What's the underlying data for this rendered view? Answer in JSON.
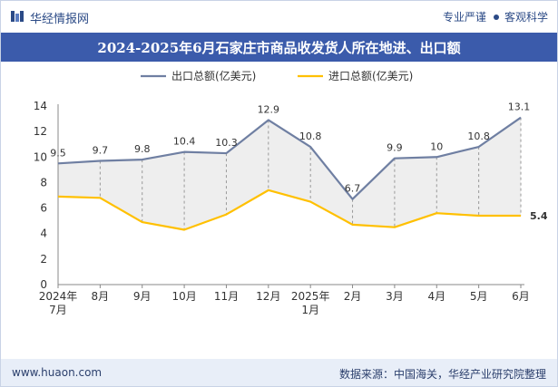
{
  "header": {
    "site_name": "华经情报网",
    "tagline_left": "专业严谨",
    "tagline_right": "客观科学"
  },
  "footer": {
    "website": "www.huaon.com",
    "source": "数据来源：中国海关，华经产业研究院整理"
  },
  "colors": {
    "title_bar": "#3b5bab",
    "export_line": "#6f7fa2",
    "import_line": "#ffc000"
  },
  "chart_data": {
    "type": "line",
    "title": "2024-2025年6月石家庄市商品收发货人所在地进、出口额",
    "categories": [
      [
        "2024年",
        "7月"
      ],
      [
        "8月"
      ],
      [
        "9月"
      ],
      [
        "10月"
      ],
      [
        "11月"
      ],
      [
        "12月"
      ],
      [
        "2025年",
        "1月"
      ],
      [
        "2月"
      ],
      [
        "3月"
      ],
      [
        "4月"
      ],
      [
        "5月"
      ],
      [
        "6月"
      ]
    ],
    "ylim": [
      0,
      14
    ],
    "yticks": [
      0,
      2,
      4,
      6,
      8,
      10,
      12,
      14
    ],
    "series": [
      {
        "name": "出口总额(亿美元)",
        "color": "#6f7fa2",
        "values": [
          9.5,
          9.7,
          9.8,
          10.4,
          10.3,
          12.9,
          10.8,
          6.7,
          9.9,
          10,
          10.8,
          13.1
        ],
        "labels": [
          "9.5",
          "9.7",
          "9.8",
          "10.4",
          "10.3",
          "12.9",
          "10.8",
          "6.7",
          "9.9",
          "10",
          "10.8",
          "13.1"
        ]
      },
      {
        "name": "进口总额(亿美元)",
        "color": "#ffc000",
        "values": [
          6.9,
          6.8,
          4.9,
          4.3,
          5.5,
          7.4,
          6.5,
          4.7,
          4.5,
          5.6,
          5.4,
          5.4
        ],
        "labels": [
          "",
          "",
          "",
          "",
          "",
          "",
          "",
          "",
          "",
          "",
          "",
          "5.4"
        ]
      }
    ],
    "legend_position": "top-center",
    "grid": false
  }
}
